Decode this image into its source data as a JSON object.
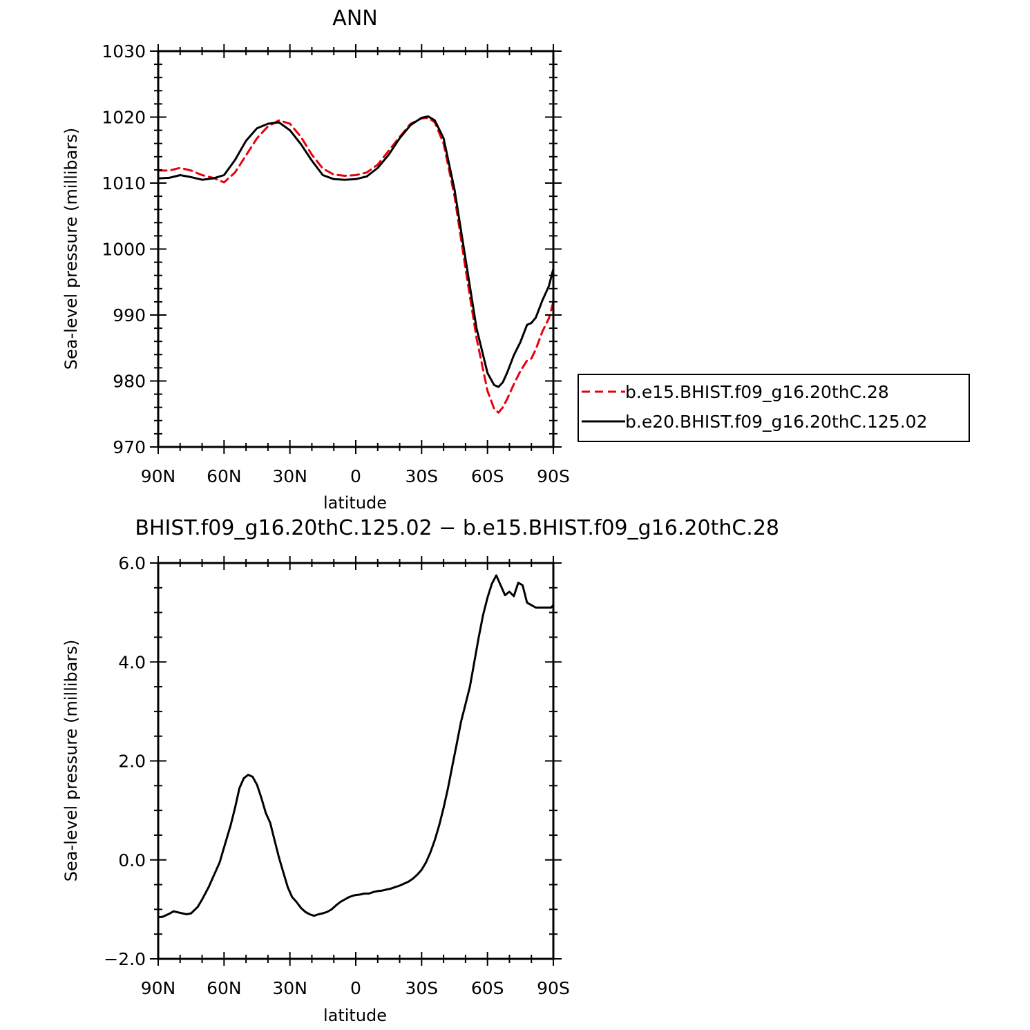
{
  "chart_data": [
    {
      "type": "line",
      "title": "ANN",
      "xlabel": "latitude",
      "ylabel": "Sea-level pressure (millibars)",
      "xlim": [
        90,
        -90
      ],
      "ylim": [
        970,
        1030
      ],
      "xticks": [
        {
          "value": 90,
          "label": "90N"
        },
        {
          "value": 60,
          "label": "60N"
        },
        {
          "value": 30,
          "label": "30N"
        },
        {
          "value": 0,
          "label": "0"
        },
        {
          "value": -30,
          "label": "30S"
        },
        {
          "value": -60,
          "label": "60S"
        },
        {
          "value": -90,
          "label": "90S"
        }
      ],
      "yticks": [
        {
          "value": 970,
          "label": "970"
        },
        {
          "value": 980,
          "label": "980"
        },
        {
          "value": 990,
          "label": "990"
        },
        {
          "value": 1000,
          "label": "1000"
        },
        {
          "value": 1010,
          "label": "1010"
        },
        {
          "value": 1020,
          "label": "1020"
        },
        {
          "value": 1030,
          "label": "1030"
        }
      ],
      "legend_position": "right",
      "series": [
        {
          "name": "b.e15.BHIST.f09_g16.20thC.28",
          "color": "#e8000b",
          "dash": "dashed",
          "x": [
            90,
            85,
            80,
            75,
            70,
            65,
            60,
            55,
            50,
            45,
            40,
            35,
            30,
            25,
            20,
            15,
            10,
            5,
            0,
            -5,
            -10,
            -15,
            -20,
            -25,
            -30,
            -33,
            -36,
            -40,
            -45,
            -50,
            -55,
            -60,
            -63,
            -65,
            -67,
            -69,
            -72,
            -75,
            -78,
            -80,
            -82,
            -85,
            -88,
            -90
          ],
          "y": [
            1011.9,
            1011.9,
            1012.3,
            1011.9,
            1011.2,
            1010.8,
            1010.1,
            1011.6,
            1014.2,
            1016.8,
            1018.6,
            1019.5,
            1019.0,
            1017.0,
            1014.3,
            1012.2,
            1011.3,
            1011.1,
            1011.2,
            1011.6,
            1012.8,
            1014.9,
            1017.0,
            1019.0,
            1019.8,
            1019.9,
            1019.2,
            1016.0,
            1008.0,
            997.0,
            986.5,
            978.5,
            975.8,
            975.2,
            976.0,
            977.3,
            979.5,
            981.5,
            983.1,
            983.4,
            984.8,
            987.5,
            989.5,
            992.0
          ]
        },
        {
          "name": "b.e20.BHIST.f09_g16.20thC.125.02",
          "color": "#000000",
          "dash": "solid",
          "x": [
            90,
            85,
            80,
            75,
            70,
            65,
            60,
            55,
            50,
            45,
            40,
            35,
            30,
            25,
            20,
            15,
            10,
            5,
            0,
            -5,
            -10,
            -15,
            -20,
            -25,
            -30,
            -33,
            -36,
            -40,
            -45,
            -50,
            -55,
            -60,
            -63,
            -65,
            -67,
            -69,
            -72,
            -75,
            -78,
            -80,
            -82,
            -85,
            -88,
            -90
          ],
          "y": [
            1010.7,
            1010.8,
            1011.2,
            1010.9,
            1010.5,
            1010.7,
            1011.2,
            1013.5,
            1016.4,
            1018.3,
            1019.0,
            1019.2,
            1018.0,
            1015.9,
            1013.4,
            1011.2,
            1010.6,
            1010.5,
            1010.6,
            1011.0,
            1012.3,
            1014.3,
            1016.8,
            1018.8,
            1019.9,
            1020.1,
            1019.5,
            1016.8,
            1009.0,
            998.5,
            988.0,
            981.2,
            979.4,
            979.1,
            979.8,
            981.3,
            983.9,
            985.9,
            988.5,
            988.8,
            989.6,
            992.2,
            994.4,
            997.0
          ]
        }
      ]
    },
    {
      "type": "line",
      "title": "BHIST.f09_g16.20thC.125.02 − b.e15.BHIST.f09_g16.20thC.28",
      "xlabel": "latitude",
      "ylabel": "Sea-level pressure (millibars)",
      "xlim": [
        90,
        -90
      ],
      "ylim": [
        -2.0,
        6.0
      ],
      "xticks": [
        {
          "value": 90,
          "label": "90N"
        },
        {
          "value": 60,
          "label": "60N"
        },
        {
          "value": 30,
          "label": "30N"
        },
        {
          "value": 0,
          "label": "0"
        },
        {
          "value": -30,
          "label": "30S"
        },
        {
          "value": -60,
          "label": "60S"
        },
        {
          "value": -90,
          "label": "90S"
        }
      ],
      "yticks": [
        {
          "value": -2.0,
          "label": "−2.0"
        },
        {
          "value": 0.0,
          "label": "0.0"
        },
        {
          "value": 2.0,
          "label": "2.0"
        },
        {
          "value": 4.0,
          "label": "4.0"
        },
        {
          "value": 6.0,
          "label": "6.0"
        }
      ],
      "series": [
        {
          "color": "#000000",
          "dash": "solid",
          "x": [
            90,
            88,
            85,
            83,
            80,
            77,
            75,
            72,
            70,
            67,
            65,
            62,
            60,
            57,
            55,
            53,
            51,
            49,
            47,
            45,
            43,
            41,
            39,
            37,
            35,
            33,
            31,
            29,
            27,
            25,
            23,
            21,
            19,
            17,
            15,
            13,
            11,
            9,
            7,
            5,
            3,
            1,
            0,
            -2,
            -4,
            -6,
            -8,
            -10,
            -12,
            -14,
            -16,
            -18,
            -20,
            -22,
            -24,
            -26,
            -28,
            -30,
            -32,
            -34,
            -36,
            -38,
            -40,
            -42,
            -44,
            -46,
            -48,
            -50,
            -52,
            -54,
            -56,
            -58,
            -60,
            -62,
            -64,
            -66,
            -68,
            -70,
            -72,
            -74,
            -76,
            -78,
            -80,
            -82,
            -84,
            -85,
            -86,
            -87,
            -88,
            -89,
            -90
          ],
          "y": [
            -1.16,
            -1.15,
            -1.09,
            -1.04,
            -1.07,
            -1.1,
            -1.08,
            -0.95,
            -0.8,
            -0.55,
            -0.35,
            -0.05,
            0.25,
            0.7,
            1.05,
            1.45,
            1.65,
            1.72,
            1.68,
            1.52,
            1.25,
            0.95,
            0.75,
            0.4,
            0.05,
            -0.25,
            -0.55,
            -0.75,
            -0.85,
            -0.97,
            -1.05,
            -1.1,
            -1.13,
            -1.1,
            -1.08,
            -1.05,
            -1.0,
            -0.92,
            -0.85,
            -0.8,
            -0.75,
            -0.72,
            -0.71,
            -0.7,
            -0.68,
            -0.68,
            -0.65,
            -0.63,
            -0.62,
            -0.6,
            -0.58,
            -0.55,
            -0.52,
            -0.48,
            -0.44,
            -0.38,
            -0.3,
            -0.2,
            -0.05,
            0.15,
            0.4,
            0.7,
            1.05,
            1.45,
            1.9,
            2.35,
            2.8,
            3.15,
            3.5,
            4.0,
            4.5,
            4.95,
            5.3,
            5.58,
            5.75,
            5.55,
            5.35,
            5.42,
            5.33,
            5.6,
            5.55,
            5.2,
            5.15,
            5.1,
            5.1,
            5.1,
            5.1,
            5.1,
            5.1,
            5.1,
            5.15
          ]
        }
      ]
    }
  ]
}
